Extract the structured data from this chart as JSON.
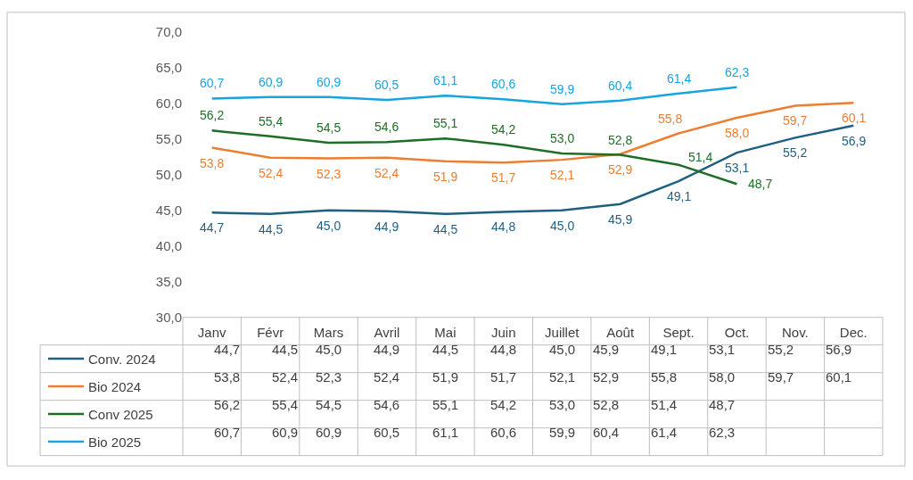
{
  "chart_data": {
    "type": "line",
    "categories": [
      "Janv",
      "Févr",
      "Mars",
      "Avril",
      "Mai",
      "Juin",
      "Juillet",
      "Août",
      "Sept.",
      "Oct.",
      "Nov.",
      "Dec."
    ],
    "ylim": [
      30,
      70
    ],
    "yticks": [
      {
        "value": 30,
        "label": "30,0"
      },
      {
        "value": 35,
        "label": "35,0"
      },
      {
        "value": 40,
        "label": "40,0"
      },
      {
        "value": 45,
        "label": "45,0"
      },
      {
        "value": 50,
        "label": "50,0"
      },
      {
        "value": 55,
        "label": "55,0"
      },
      {
        "value": 60,
        "label": "60,0"
      },
      {
        "value": 65,
        "label": "65,0"
      },
      {
        "value": 70,
        "label": "70,0"
      }
    ],
    "grid": false,
    "marker": "none",
    "line_style": "solid",
    "legend": "bottom left",
    "series": [
      {
        "name": "Conv. 2024",
        "color": "#1f5f82",
        "values": [
          44.7,
          44.5,
          45.0,
          44.9,
          44.5,
          44.8,
          45.0,
          45.9,
          49.1,
          53.1,
          55.2,
          56.9
        ],
        "value_labels": [
          "44,7",
          "44,5",
          "45,0",
          "44,9",
          "44,5",
          "44,8",
          "45,0",
          "45,9",
          "49,1",
          "53,1",
          "55,2",
          "56,9"
        ]
      },
      {
        "name": "Bio 2024",
        "color": "#ed7d31",
        "values": [
          53.8,
          52.4,
          52.3,
          52.4,
          51.9,
          51.7,
          52.1,
          52.9,
          55.8,
          58.0,
          59.7,
          60.1
        ],
        "value_labels": [
          "53,8",
          "52,4",
          "52,3",
          "52,4",
          "51,9",
          "51,7",
          "52,1",
          "52,9",
          "55,8",
          "58,0",
          "59,7",
          "60,1"
        ]
      },
      {
        "name": "Conv 2025",
        "color": "#1e6e26",
        "values": [
          56.2,
          55.4,
          54.5,
          54.6,
          55.1,
          54.2,
          53.0,
          52.8,
          51.4,
          48.7,
          null,
          null
        ],
        "value_labels": [
          "56,2",
          "55,4",
          "54,5",
          "54,6",
          "55,1",
          "54,2",
          "53,0",
          "52,8",
          "51,4",
          "48,7",
          null,
          null
        ]
      },
      {
        "name": "Bio 2025",
        "color": "#18a4de",
        "values": [
          60.7,
          60.9,
          60.9,
          60.5,
          61.1,
          60.6,
          59.9,
          60.4,
          61.4,
          62.3,
          null,
          null
        ],
        "value_labels": [
          "60,7",
          "60,9",
          "60,9",
          "60,5",
          "61,1",
          "60,6",
          "59,9",
          "60,4",
          "61,4",
          "62,3",
          null,
          null
        ]
      }
    ]
  }
}
